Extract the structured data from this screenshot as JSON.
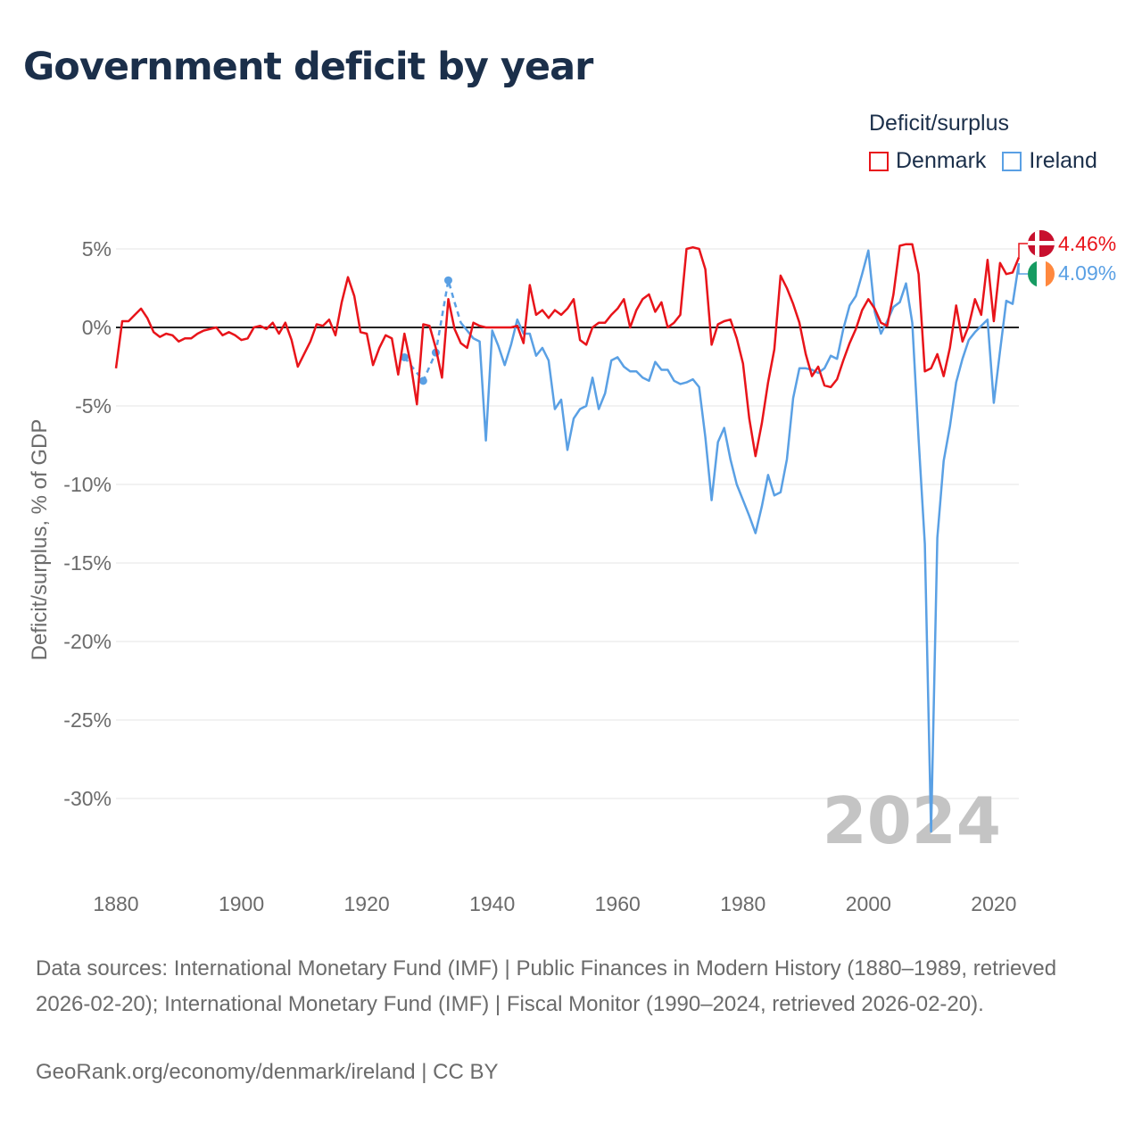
{
  "title": "Government deficit by year",
  "legend": {
    "title": "Deficit/surplus",
    "items": [
      {
        "label": "Denmark",
        "color": "#e8141a"
      },
      {
        "label": "Ireland",
        "color": "#5aa0e4"
      }
    ]
  },
  "year_label": "2024",
  "end_labels": {
    "denmark": "4.46%",
    "ireland": "4.09%"
  },
  "footer": {
    "sources": "Data sources: International Monetary Fund (IMF) | Public Finances in Modern History (1880–1989, retrieved 2026-02-20); International Monetary Fund (IMF) | Fiscal Monitor (1990–2024, retrieved 2026-02-20).",
    "attribution": "GeoRank.org/economy/denmark/ireland | CC BY"
  },
  "chart_data": {
    "type": "line",
    "title": "Government deficit by year",
    "xlabel": "",
    "ylabel": "Deficit/surplus, % of GDP",
    "xlim": [
      1880,
      2024
    ],
    "ylim": [
      -35,
      7
    ],
    "x_ticks": [
      1880,
      1900,
      1920,
      1940,
      1960,
      1980,
      2000,
      2020
    ],
    "x_tick_labels": [
      "1880",
      "1900",
      "1920",
      "1940",
      "1960",
      "1980",
      "2000",
      "2020"
    ],
    "y_ticks": [
      5,
      0,
      -5,
      -10,
      -15,
      -20,
      -25,
      -30
    ],
    "y_tick_labels": [
      "5%",
      "0%",
      "-5%",
      "-10%",
      "-15%",
      "-20%",
      "-25%",
      "-30%"
    ],
    "series": [
      {
        "name": "Denmark",
        "color": "#e8141a",
        "x": [
          1880,
          1881,
          1882,
          1883,
          1884,
          1885,
          1886,
          1887,
          1888,
          1889,
          1890,
          1891,
          1892,
          1893,
          1894,
          1895,
          1896,
          1897,
          1898,
          1899,
          1900,
          1901,
          1902,
          1903,
          1904,
          1905,
          1906,
          1907,
          1908,
          1909,
          1910,
          1911,
          1912,
          1913,
          1914,
          1915,
          1916,
          1917,
          1918,
          1919,
          1920,
          1921,
          1922,
          1923,
          1924,
          1925,
          1926,
          1927,
          1928,
          1929,
          1930,
          1931,
          1932,
          1933,
          1934,
          1935,
          1936,
          1937,
          1938,
          1939,
          1940,
          1941,
          1942,
          1943,
          1944,
          1945,
          1946,
          1947,
          1948,
          1949,
          1950,
          1951,
          1952,
          1953,
          1954,
          1955,
          1956,
          1957,
          1958,
          1959,
          1960,
          1961,
          1962,
          1963,
          1964,
          1965,
          1966,
          1967,
          1968,
          1969,
          1970,
          1971,
          1972,
          1973,
          1974,
          1975,
          1976,
          1977,
          1978,
          1979,
          1980,
          1981,
          1982,
          1983,
          1984,
          1985,
          1986,
          1987,
          1988,
          1989,
          1990,
          1991,
          1992,
          1993,
          1994,
          1995,
          1996,
          1997,
          1998,
          1999,
          2000,
          2001,
          2002,
          2003,
          2004,
          2005,
          2006,
          2007,
          2008,
          2009,
          2010,
          2011,
          2012,
          2013,
          2014,
          2015,
          2016,
          2017,
          2018,
          2019,
          2020,
          2021,
          2022,
          2023,
          2024
        ],
        "values": [
          -2.6,
          0.4,
          0.4,
          0.8,
          1.2,
          0.6,
          -0.3,
          -0.6,
          -0.4,
          -0.5,
          -0.9,
          -0.7,
          -0.7,
          -0.4,
          -0.2,
          -0.1,
          0,
          -0.5,
          -0.3,
          -0.5,
          -0.8,
          -0.7,
          0,
          0.1,
          -0.1,
          0.3,
          -0.4,
          0.3,
          -0.8,
          -2.5,
          -1.7,
          -0.9,
          0.2,
          0.1,
          0.5,
          -0.5,
          1.6,
          3.2,
          2,
          -0.3,
          -0.4,
          -2.4,
          -1.3,
          -0.5,
          -0.7,
          -3,
          -0.4,
          -2.3,
          -4.9,
          0.2,
          0.1,
          -1.3,
          -3.2,
          1.8,
          -0.1,
          -1,
          -1.3,
          0.3,
          0.1,
          0,
          0,
          0,
          0,
          0,
          0.1,
          -1,
          2.7,
          0.8,
          1.1,
          0.6,
          1.1,
          0.8,
          1.2,
          1.8,
          -0.8,
          -1.1,
          0,
          0.3,
          0.3,
          0.8,
          1.2,
          1.8,
          0,
          1.1,
          1.8,
          2.1,
          1,
          1.6,
          0,
          0.3,
          0.8,
          5,
          5.1,
          5,
          3.7,
          -1.1,
          0.2,
          0.4,
          0.5,
          -0.7,
          -2.3,
          -5.8,
          -8.2,
          -6.1,
          -3.5,
          -1.4,
          3.3,
          2.5,
          1.5,
          0.3,
          -1.7,
          -3.1,
          -2.5,
          -3.7,
          -3.8,
          -3.3,
          -2.1,
          -1,
          -0.1,
          1.1,
          1.8,
          1.2,
          0.3,
          0.1,
          2.1,
          5.2,
          5.3,
          5.3,
          3.4,
          -2.8,
          -2.6,
          -1.7,
          -3.1,
          -1.3,
          1.4,
          -0.9,
          0.1,
          1.8,
          0.8,
          4.3,
          0.4,
          4.1,
          3.4,
          3.5,
          4.46
        ]
      },
      {
        "name": "Ireland",
        "color": "#5aa0e4",
        "x": [
          1926,
          1929,
          1931,
          1933,
          1934,
          1935,
          1936,
          1937,
          1938,
          1939,
          1940,
          1941,
          1942,
          1943,
          1944,
          1945,
          1946,
          1947,
          1948,
          1949,
          1950,
          1951,
          1952,
          1953,
          1954,
          1955,
          1956,
          1957,
          1958,
          1959,
          1960,
          1961,
          1962,
          1963,
          1964,
          1965,
          1966,
          1967,
          1968,
          1969,
          1970,
          1971,
          1972,
          1973,
          1974,
          1975,
          1976,
          1977,
          1978,
          1979,
          1980,
          1981,
          1982,
          1983,
          1984,
          1985,
          1986,
          1987,
          1988,
          1989,
          1990,
          1991,
          1992,
          1993,
          1994,
          1995,
          1996,
          1997,
          1998,
          1999,
          2000,
          2001,
          2002,
          2003,
          2004,
          2005,
          2006,
          2007,
          2008,
          2009,
          2010,
          2011,
          2012,
          2013,
          2014,
          2015,
          2016,
          2017,
          2018,
          2019,
          2020,
          2021,
          2022,
          2023,
          2024
        ],
        "values": [
          -1.9,
          -3.4,
          -1.6,
          3,
          1.6,
          0.3,
          -0.2,
          -0.7,
          -0.9,
          -7.2,
          -0.2,
          -1.2,
          -2.4,
          -1.1,
          0.5,
          -0.4,
          -0.4,
          -1.8,
          -1.3,
          -2.1,
          -5.2,
          -4.6,
          -7.8,
          -5.8,
          -5.2,
          -5,
          -3.2,
          -5.2,
          -4.2,
          -2.1,
          -1.9,
          -2.5,
          -2.8,
          -2.8,
          -3.2,
          -3.4,
          -2.2,
          -2.7,
          -2.7,
          -3.4,
          -3.6,
          -3.5,
          -3.3,
          -3.8,
          -7,
          -11,
          -7.3,
          -6.4,
          -8.4,
          -10,
          -11,
          -12,
          -13.1,
          -11.4,
          -9.4,
          -10.7,
          -10.5,
          -8.4,
          -4.5,
          -2.6,
          -2.6,
          -2.7,
          -2.9,
          -2.6,
          -1.8,
          -2,
          -0.1,
          1.4,
          2,
          3.4,
          4.9,
          1,
          -0.4,
          0.4,
          1.3,
          1.6,
          2.8,
          0.3,
          -7.1,
          -13.8,
          -32.1,
          -13.4,
          -8.5,
          -6.3,
          -3.5,
          -2,
          -0.8,
          -0.3,
          0.1,
          0.5,
          -4.8,
          -1.5,
          1.7,
          1.5,
          4.09
        ]
      }
    ],
    "ireland_dashed_segment_years": [
      1926,
      1929,
      1931,
      1933,
      1934,
      1935
    ]
  }
}
